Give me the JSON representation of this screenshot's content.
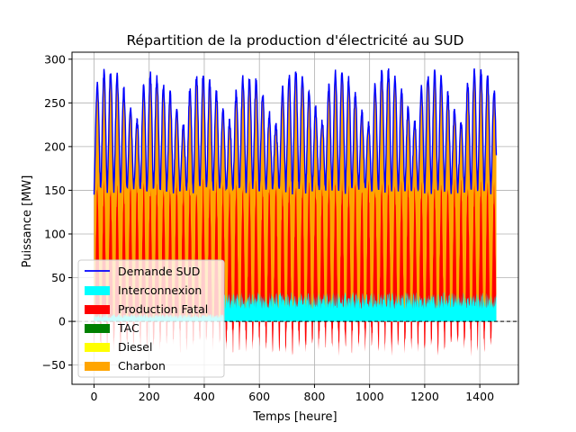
{
  "chart_data": {
    "type": "area",
    "title": "Répartition de la production d'électricité au SUD",
    "xlabel": "Temps [heure]",
    "ylabel": "Puissance [MW]",
    "xlim": [
      -80,
      1540
    ],
    "ylim": [
      -72,
      308
    ],
    "xticks": [
      0,
      200,
      400,
      600,
      800,
      1000,
      1200,
      1400
    ],
    "yticks": [
      -50,
      0,
      50,
      100,
      150,
      200,
      250,
      300
    ],
    "xtick_labels": [
      "0",
      "200",
      "400",
      "600",
      "800",
      "1000",
      "1200",
      "1400"
    ],
    "ytick_labels": [
      "−50",
      "0",
      "50",
      "100",
      "150",
      "200",
      "250",
      "300"
    ],
    "grid": true,
    "zero_line": {
      "y": 0,
      "style": "dashed",
      "color": "#000000"
    },
    "legend_position": "lower-left",
    "hours": 1460,
    "series": [
      {
        "name": "Demande SUD",
        "kind": "line",
        "color": "#0000ff",
        "daily_peak": [
          270,
          285,
          285,
          280,
          265,
          245,
          230,
          270,
          283,
          280,
          270,
          260,
          240,
          225,
          265,
          280,
          282,
          275,
          262,
          242,
          228,
          262,
          278,
          280,
          275,
          260,
          238,
          224,
          266,
          282,
          287,
          280,
          262,
          244,
          230,
          268,
          284,
          286,
          278,
          262,
          240,
          226,
          272,
          286,
          288,
          280,
          264,
          246,
          228,
          266,
          282,
          284,
          278,
          260,
          240,
          226,
          270,
          285,
          286,
          280,
          262
        ],
        "daily_min": 150
      },
      {
        "name": "Interconnexion",
        "kind": "area",
        "color": "#00ffff",
        "typical_max": 40
      },
      {
        "name": "Production Fatal",
        "kind": "area",
        "color": "#ff0000",
        "range": [
          -55,
          160
        ]
      },
      {
        "name": "TAC",
        "kind": "area",
        "color": "#008000"
      },
      {
        "name": "Diesel",
        "kind": "area",
        "color": "#ffff00"
      },
      {
        "name": "Charbon",
        "kind": "area",
        "color": "#ffa500",
        "typical_level": [
          120,
          150
        ]
      }
    ]
  }
}
